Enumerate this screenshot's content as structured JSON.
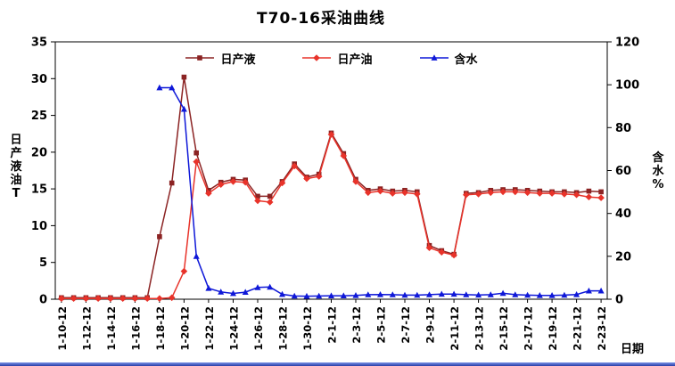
{
  "page": {
    "background": "#FFFFFF",
    "bottom_edge_color": "#3D55C0"
  },
  "chart_data": {
    "type": "line",
    "title": "T70-16采油曲线",
    "xlabel": "日期",
    "ylabel_left": "日产液油T",
    "ylabel_right": "含水%",
    "ylim_left": [
      0,
      35
    ],
    "ylim_right": [
      0,
      120
    ],
    "yticks_left": [
      0,
      5,
      10,
      15,
      20,
      25,
      30,
      35
    ],
    "yticks_right": [
      0,
      20,
      40,
      60,
      80,
      100,
      120
    ],
    "x_tick_step": 2,
    "grid": false,
    "legend_position": "top-center",
    "categories": [
      "1-10-12",
      "1-11-12",
      "1-12-12",
      "1-13-12",
      "1-14-12",
      "1-15-12",
      "1-16-12",
      "1-17-12",
      "1-18-12",
      "1-19-12",
      "1-20-12",
      "1-21-12",
      "1-22-12",
      "1-23-12",
      "1-24-12",
      "1-25-12",
      "1-26-12",
      "1-27-12",
      "1-28-12",
      "1-29-12",
      "1-30-12",
      "1-31-12",
      "2-1-12",
      "2-2-12",
      "2-3-12",
      "2-4-12",
      "2-5-12",
      "2-6-12",
      "2-7-12",
      "2-8-12",
      "2-9-12",
      "2-10-12",
      "2-11-12",
      "2-12-12",
      "2-13-12",
      "2-14-12",
      "2-15-12",
      "2-16-12",
      "2-17-12",
      "2-18-12",
      "2-19-12",
      "2-20-12",
      "2-21-12",
      "2-22-12",
      "2-23-12"
    ],
    "series": [
      {
        "id": "liquid",
        "name": "日产液",
        "color": "#8B2323",
        "marker": "square",
        "axis": "left",
        "values": [
          0.2,
          0.2,
          0.2,
          0.2,
          0.2,
          0.2,
          0.2,
          0.2,
          8.5,
          15.8,
          30.2,
          19.9,
          14.8,
          15.9,
          16.3,
          16.2,
          14.0,
          14.0,
          16.0,
          18.4,
          16.6,
          17.0,
          22.6,
          19.8,
          16.3,
          14.8,
          15.0,
          14.7,
          14.8,
          14.6,
          7.3,
          6.6,
          6.1,
          14.4,
          14.5,
          14.8,
          14.9,
          14.9,
          14.8,
          14.7,
          14.6,
          14.6,
          14.5,
          14.7,
          14.6
        ]
      },
      {
        "id": "oil",
        "name": "日产油",
        "color": "#E8332A",
        "marker": "diamond",
        "axis": "left",
        "values": [
          0.1,
          0.1,
          0.1,
          0.1,
          0.1,
          0.1,
          0.1,
          0.1,
          0.1,
          0.2,
          3.8,
          18.7,
          14.4,
          15.6,
          16.0,
          15.9,
          13.4,
          13.2,
          15.8,
          18.1,
          16.4,
          16.7,
          22.4,
          19.5,
          16.0,
          14.5,
          14.7,
          14.4,
          14.5,
          14.3,
          7.0,
          6.4,
          6.0,
          14.2,
          14.3,
          14.5,
          14.6,
          14.6,
          14.5,
          14.4,
          14.4,
          14.3,
          14.2,
          13.9,
          13.8
        ]
      },
      {
        "id": "water",
        "name": "含水",
        "color": "#0F18D8",
        "marker": "triangle",
        "axis": "right",
        "values": [
          null,
          null,
          null,
          null,
          null,
          null,
          null,
          null,
          98.6,
          98.6,
          88.6,
          20.0,
          5.1,
          3.4,
          2.7,
          3.3,
          5.5,
          5.7,
          2.3,
          1.5,
          1.4,
          1.5,
          1.6,
          1.6,
          1.8,
          2.1,
          2.2,
          2.1,
          1.9,
          1.9,
          2.1,
          2.4,
          2.4,
          2.1,
          2.0,
          2.1,
          2.8,
          2.1,
          1.9,
          1.8,
          1.8,
          1.9,
          2.2,
          3.9,
          3.9
        ]
      }
    ]
  }
}
